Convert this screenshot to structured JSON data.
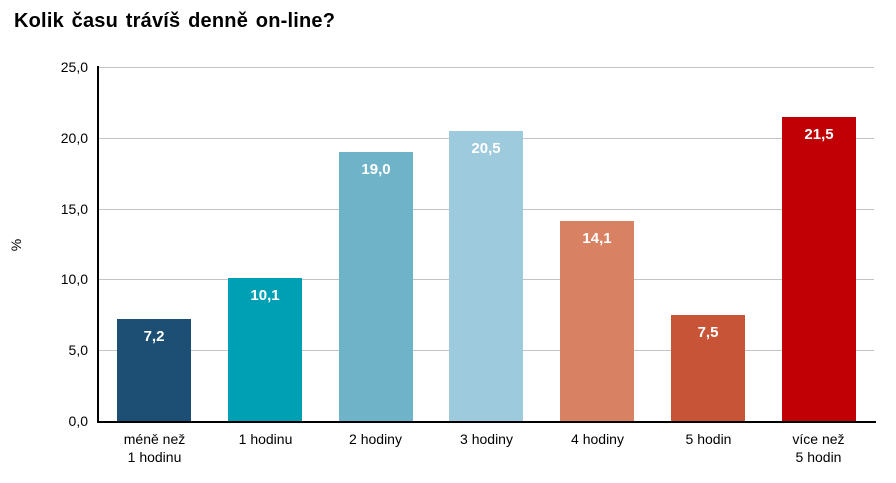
{
  "page": {
    "title": "Kolik času trávíš denně on-line?"
  },
  "chart_data": {
    "type": "bar",
    "title": "Kolik času trávíš denně on-line?",
    "xlabel": "",
    "ylabel": "%",
    "ylim": [
      0,
      25
    ],
    "ytick_step": 5,
    "ytick_labels": [
      "0,0",
      "5,0",
      "10,0",
      "15,0",
      "20,0",
      "25,0"
    ],
    "grid": true,
    "legend": false,
    "categories": [
      "méně než\n1 hodinu",
      "1 hodinu",
      "2 hodiny",
      "3 hodiny",
      "4 hodiny",
      "5 hodin",
      "více než\n5 hodin"
    ],
    "values": [
      7.2,
      10.1,
      19.0,
      20.5,
      14.1,
      7.5,
      21.5
    ],
    "value_labels": [
      "7,2",
      "10,1",
      "19,0",
      "20,5",
      "14,1",
      "7,5",
      "21,5"
    ],
    "bar_colors": [
      "#1C4F73",
      "#00A0B4",
      "#6FB3C8",
      "#9ECADD",
      "#D98163",
      "#C85437",
      "#C00005"
    ],
    "value_label_color": "#FFFFFF",
    "gridline_color": "#C3C3C3",
    "axis_color": "#000000",
    "text_color": "#000000"
  }
}
